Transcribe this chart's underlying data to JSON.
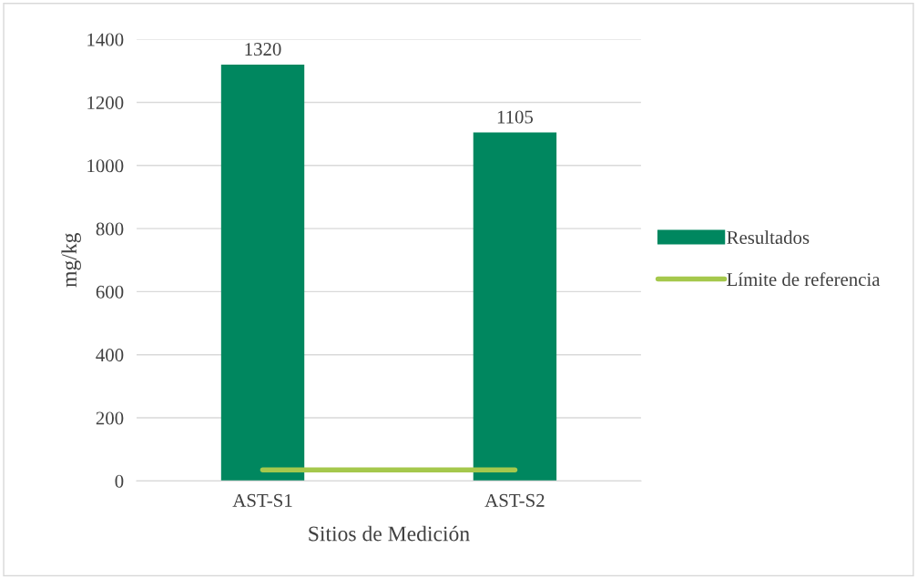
{
  "chart_data": {
    "type": "bar",
    "xlabel": "Sitios de Medición",
    "ylabel": "mg/kg",
    "categories": [
      "AST-S1",
      "AST-S2"
    ],
    "series": [
      {
        "name": "Resultados",
        "color": "#00875f",
        "values": [
          1320,
          1105
        ],
        "value_labels": [
          "1320",
          "1105"
        ]
      },
      {
        "name": "Límite de referencia",
        "type": "line",
        "color": "#a5c84c",
        "values": [
          35,
          35
        ]
      }
    ],
    "ylim": [
      0,
      1400
    ],
    "yticks": [
      0,
      200,
      400,
      600,
      800,
      1000,
      1200,
      1400
    ],
    "grid": "y",
    "legend": "right",
    "marker": "none",
    "line_style": "solid"
  }
}
